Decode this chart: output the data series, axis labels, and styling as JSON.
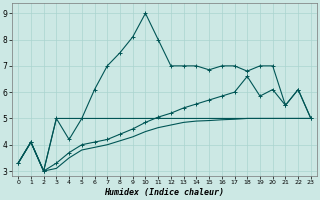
{
  "xlabel": "Humidex (Indice chaleur)",
  "xlim": [
    -0.5,
    23.5
  ],
  "ylim": [
    2.8,
    9.4
  ],
  "xticks": [
    0,
    1,
    2,
    3,
    4,
    5,
    6,
    7,
    8,
    9,
    10,
    11,
    12,
    13,
    14,
    15,
    16,
    17,
    18,
    19,
    20,
    21,
    22,
    23
  ],
  "yticks": [
    3,
    4,
    5,
    6,
    7,
    8,
    9
  ],
  "background_color": "#cce8e4",
  "grid_color": "#aad4cf",
  "line_color": "#005555",
  "series": [
    {
      "x": [
        0,
        1,
        2,
        3,
        4,
        5,
        6,
        7,
        8,
        9,
        10,
        11,
        12,
        13,
        14,
        15,
        16,
        17,
        18,
        19,
        20,
        21,
        22,
        23
      ],
      "y": [
        3.3,
        4.1,
        3.0,
        5.0,
        4.2,
        5.0,
        6.1,
        7.0,
        7.5,
        8.1,
        9.0,
        8.0,
        7.0,
        7.0,
        7.0,
        6.85,
        7.0,
        7.0,
        6.8,
        7.0,
        7.0,
        5.5,
        6.1,
        5.0
      ],
      "marker": true
    },
    {
      "x": [
        0,
        1,
        2,
        3,
        4,
        5,
        6,
        7,
        8,
        9,
        10,
        11,
        12,
        13,
        14,
        15,
        16,
        17,
        18,
        22,
        23
      ],
      "y": [
        3.3,
        4.1,
        3.0,
        5.0,
        5.0,
        5.0,
        5.0,
        5.0,
        5.0,
        5.0,
        5.0,
        5.0,
        5.0,
        5.0,
        5.0,
        5.0,
        5.0,
        5.0,
        5.0,
        5.0,
        5.0
      ],
      "marker": false
    },
    {
      "x": [
        0,
        1,
        2,
        3,
        4,
        5,
        6,
        7,
        8,
        9,
        10,
        11,
        12,
        13,
        14,
        15,
        16,
        17,
        18,
        19,
        20,
        21,
        22,
        23
      ],
      "y": [
        3.3,
        4.1,
        3.0,
        3.3,
        3.7,
        4.0,
        4.1,
        4.2,
        4.4,
        4.6,
        4.85,
        5.05,
        5.2,
        5.4,
        5.55,
        5.7,
        5.85,
        6.0,
        6.6,
        5.85,
        6.1,
        5.5,
        6.1,
        5.0
      ],
      "marker": true
    },
    {
      "x": [
        0,
        1,
        2,
        3,
        4,
        5,
        6,
        7,
        8,
        9,
        10,
        11,
        12,
        13,
        14,
        15,
        16,
        17,
        18,
        19,
        20,
        21,
        22,
        23
      ],
      "y": [
        3.3,
        4.1,
        3.0,
        3.1,
        3.5,
        3.8,
        3.9,
        4.0,
        4.15,
        4.3,
        4.5,
        4.65,
        4.75,
        4.85,
        4.9,
        4.92,
        4.95,
        4.97,
        5.0,
        5.0,
        5.0,
        5.0,
        5.0,
        5.0
      ],
      "marker": false
    }
  ]
}
